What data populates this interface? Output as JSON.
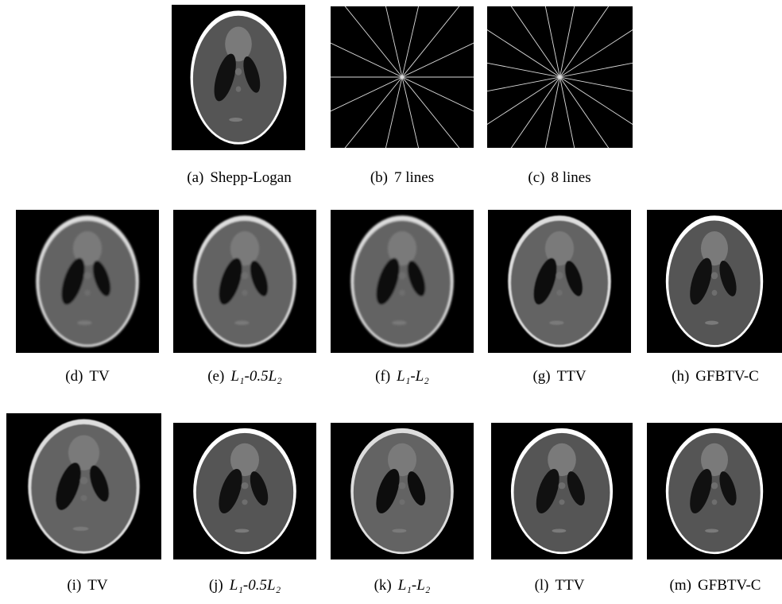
{
  "panels": [
    {
      "label": "(a)",
      "name": "Shepp-Logan"
    },
    {
      "label": "(b)",
      "name": "7 lines"
    },
    {
      "label": "(c)",
      "name": "8 lines"
    },
    {
      "label": "(d)",
      "name": "TV"
    },
    {
      "label": "(e)",
      "name": "L₁-0.5L₂",
      "math": true
    },
    {
      "label": "(f)",
      "name": "L₁-L₂",
      "math": true
    },
    {
      "label": "(g)",
      "name": "TTV"
    },
    {
      "label": "(h)",
      "name": "GFBTV-C"
    },
    {
      "label": "(i)",
      "name": "TV"
    },
    {
      "label": "(j)",
      "name": "L₁-0.5L₂",
      "math": true
    },
    {
      "label": "(k)",
      "name": "L₁-L₂",
      "math": true
    },
    {
      "label": "(l)",
      "name": "TTV"
    },
    {
      "label": "(m)",
      "name": "GFBTV-C"
    }
  ]
}
